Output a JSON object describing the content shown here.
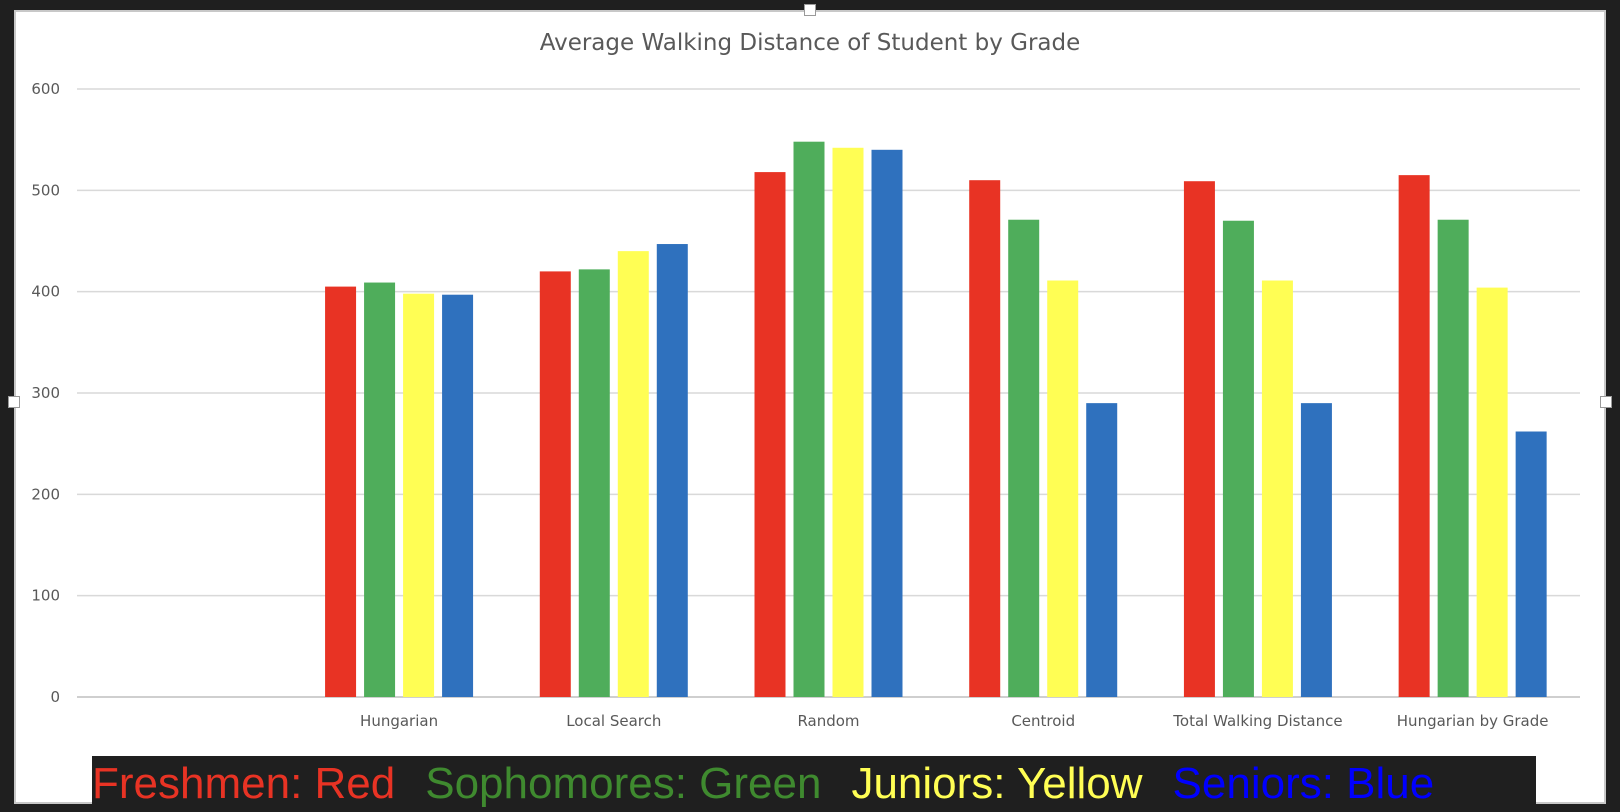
{
  "chart_data": {
    "type": "bar",
    "title": "Average Walking Distance of Student by Grade",
    "xlabel": "",
    "ylabel": "",
    "ylim": [
      0,
      600
    ],
    "yticks": [
      0,
      100,
      200,
      300,
      400,
      500,
      600
    ],
    "grid": true,
    "categories": [
      "",
      "Hungarian",
      "Local Search",
      "Random",
      "Centroid",
      "Total Walking Distance",
      "Hungarian by Grade"
    ],
    "series": [
      {
        "color": "#e83324",
        "values": [
          null,
          405,
          420,
          518,
          510,
          509,
          515
        ]
      },
      {
        "color": "#4fad5b",
        "values": [
          null,
          409,
          422,
          548,
          471,
          470,
          471
        ]
      },
      {
        "color": "#fffe54",
        "values": [
          null,
          398,
          440,
          542,
          411,
          411,
          404
        ]
      },
      {
        "color": "#2f71be",
        "values": [
          null,
          397,
          447,
          540,
          290,
          290,
          262
        ]
      }
    ],
    "legend_position": "bottom"
  },
  "legend": [
    {
      "text": "Freshmen: Red",
      "color": "#e83324"
    },
    {
      "text": "Sophomores: Green",
      "color": "#3f8a2f"
    },
    {
      "text": "Juniors: Yellow",
      "color": "#fffe54"
    },
    {
      "text": "Seniors: Blue",
      "color": "#0000ff"
    }
  ]
}
